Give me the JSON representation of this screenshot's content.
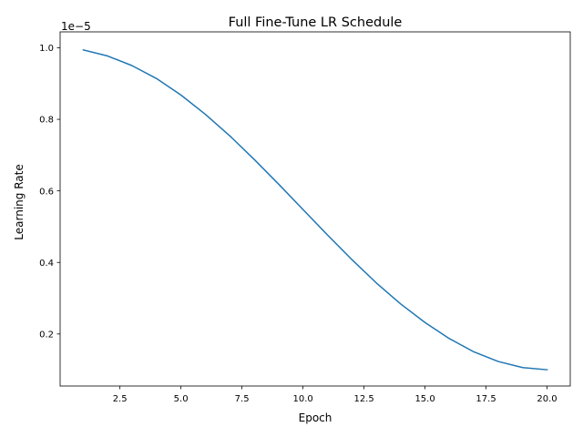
{
  "chart_data": {
    "type": "line",
    "title": "Full Fine-Tune LR Schedule",
    "xlabel": "Epoch",
    "ylabel": "Learning Rate",
    "y_offset_label": "1e−5",
    "xlim": [
      0.05,
      20.95
    ],
    "ylim": [
      5.45e-07,
      1.0445e-05
    ],
    "x_ticks": [
      2.5,
      5.0,
      7.5,
      10.0,
      12.5,
      15.0,
      17.5,
      20.0
    ],
    "x_tick_labels": [
      "2.5",
      "5.0",
      "7.5",
      "10.0",
      "12.5",
      "15.0",
      "17.5",
      "20.0"
    ],
    "y_ticks": [
      2e-06,
      4e-06,
      6e-06,
      8e-06,
      1e-05
    ],
    "y_tick_labels": [
      "0.2",
      "0.4",
      "0.6",
      "0.8",
      "1.0"
    ],
    "grid": false,
    "series": [
      {
        "color": "#1f77b4",
        "x": [
          1,
          2,
          3,
          4,
          5,
          6,
          7,
          8,
          9,
          10,
          11,
          12,
          13,
          14,
          15,
          16,
          17,
          18,
          19,
          20
        ],
        "y": [
          9.94e-06,
          9.77e-06,
          9.5e-06,
          9.14e-06,
          8.68e-06,
          8.14e-06,
          7.54e-06,
          6.88e-06,
          6.19e-06,
          5.48e-06,
          4.77e-06,
          4.08e-06,
          3.43e-06,
          2.84e-06,
          2.32e-06,
          1.87e-06,
          1.5e-06,
          1.23e-06,
          1.06e-06,
          1e-06
        ]
      }
    ]
  }
}
